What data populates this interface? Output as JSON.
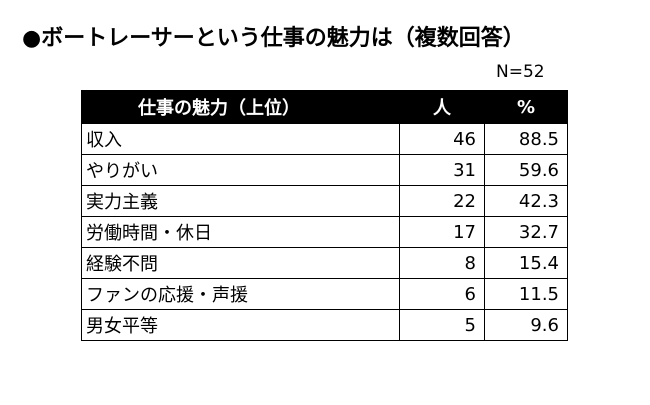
{
  "title": "●ボートレーサーという仕事の魅力は（複数回答）",
  "sample_size": "N=52",
  "table": {
    "headers": {
      "item": "仕事の魅力（上位）",
      "count": "人",
      "percent": "%"
    },
    "rows": [
      {
        "item": "収入",
        "count": "46",
        "percent": "88.5"
      },
      {
        "item": "やりがい",
        "count": "31",
        "percent": "59.6"
      },
      {
        "item": "実力主義",
        "count": "22",
        "percent": "42.3"
      },
      {
        "item": "労働時間・休日",
        "count": "17",
        "percent": "32.7"
      },
      {
        "item": "経験不問",
        "count": "8",
        "percent": "15.4"
      },
      {
        "item": "ファンの応援・声援",
        "count": "6",
        "percent": "11.5"
      },
      {
        "item": "男女平等",
        "count": "5",
        "percent": "9.6"
      }
    ]
  }
}
